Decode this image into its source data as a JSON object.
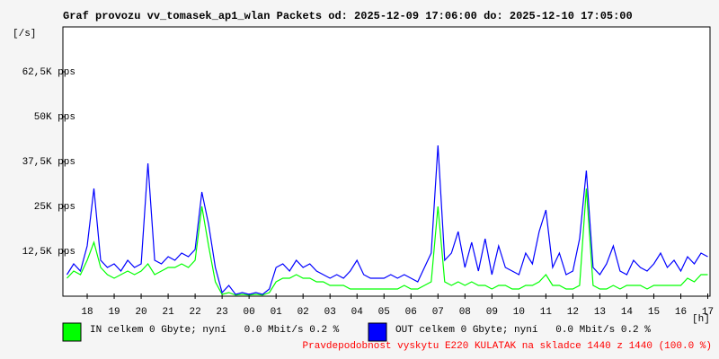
{
  "chart_data": {
    "type": "line",
    "title": "Graf provozu vv_tomasek_ap1_wlan Packets od: 2025-12-09 17:06:00 do: 2025-12-10 17:05:00",
    "y_label": "[/s]",
    "x_label": "[h]",
    "footer": "Pravdepodobnost vyskytu E220 KULATAK na skladce 1440 z 1440 (100.0 %)",
    "xlim": [
      17.1,
      41.083
    ],
    "xticks": [
      18,
      19,
      20,
      21,
      22,
      23,
      {
        "value": 24,
        "label": "00"
      },
      {
        "value": 25,
        "label": "01"
      },
      {
        "value": 26,
        "label": "02"
      },
      {
        "value": 27,
        "label": "03"
      },
      {
        "value": 28,
        "label": "04"
      },
      {
        "value": 29,
        "label": "05"
      },
      {
        "value": 30,
        "label": "06"
      },
      {
        "value": 31,
        "label": "07"
      },
      {
        "value": 32,
        "label": "08"
      },
      {
        "value": 33,
        "label": "09"
      },
      {
        "value": 34,
        "label": "10"
      },
      {
        "value": 35,
        "label": "11"
      },
      {
        "value": 36,
        "label": "12"
      },
      {
        "value": 37,
        "label": "13"
      },
      {
        "value": 38,
        "label": "14"
      },
      {
        "value": 39,
        "label": "15"
      },
      {
        "value": 40,
        "label": "16"
      },
      {
        "value": 41,
        "label": "17"
      }
    ],
    "ylim": [
      0,
      75000
    ],
    "yticks": [
      {
        "value": 12500,
        "label": "12,5K pps"
      },
      {
        "value": 25000,
        "label": "25K pps"
      },
      {
        "value": 37500,
        "label": "37,5K pps"
      },
      {
        "value": 50000,
        "label": "50K pps"
      },
      {
        "value": 62500,
        "label": "62,5K pps"
      }
    ],
    "grid": false,
    "x": [
      17.25,
      17.5,
      17.75,
      18,
      18.25,
      18.5,
      18.75,
      19,
      19.25,
      19.5,
      19.75,
      20,
      20.25,
      20.5,
      20.75,
      21,
      21.25,
      21.5,
      21.75,
      22,
      22.25,
      22.5,
      22.75,
      23,
      23.25,
      23.5,
      23.75,
      24,
      24.25,
      24.5,
      24.75,
      25,
      25.25,
      25.5,
      25.75,
      26,
      26.25,
      26.5,
      26.75,
      27,
      27.25,
      27.5,
      27.75,
      28,
      28.25,
      28.5,
      28.75,
      29,
      29.25,
      29.5,
      29.75,
      30,
      30.25,
      30.5,
      30.75,
      31,
      31.25,
      31.5,
      31.75,
      32,
      32.25,
      32.5,
      32.75,
      33,
      33.25,
      33.5,
      33.75,
      34,
      34.25,
      34.5,
      34.75,
      35,
      35.25,
      35.5,
      35.75,
      36,
      36.25,
      36.5,
      36.75,
      37,
      37.25,
      37.5,
      37.75,
      38,
      38.25,
      38.5,
      38.75,
      39,
      39.25,
      39.5,
      39.75,
      40,
      40.25,
      40.5,
      40.75,
      41
    ],
    "series": [
      {
        "name": "IN celkem 0 Gbyte; nyní   0.0 Mbit/s 0.2 %",
        "color": "#00ff00",
        "values": [
          5000,
          7000,
          6000,
          10000,
          15000,
          8000,
          6000,
          5000,
          6000,
          7000,
          6000,
          7000,
          9000,
          6000,
          7000,
          8000,
          8000,
          9000,
          8000,
          10000,
          25000,
          14000,
          4000,
          500,
          1000,
          300,
          500,
          300,
          500,
          300,
          1000,
          4000,
          5000,
          5000,
          6000,
          5000,
          5000,
          4000,
          4000,
          3000,
          3000,
          3000,
          2000,
          2000,
          2000,
          2000,
          2000,
          2000,
          2000,
          2000,
          3000,
          2000,
          2000,
          3000,
          4000,
          25000,
          4000,
          3000,
          4000,
          3000,
          4000,
          3000,
          3000,
          2000,
          3000,
          3000,
          2000,
          2000,
          3000,
          3000,
          4000,
          6000,
          3000,
          3000,
          2000,
          2000,
          3000,
          30000,
          3000,
          2000,
          2000,
          3000,
          2000,
          3000,
          3000,
          3000,
          2000,
          3000,
          3000,
          3000,
          3000,
          3000,
          5000,
          4000,
          6000,
          6000
        ]
      },
      {
        "name": "OUT celkem 0 Gbyte; nyní   0.0 Mbit/s 0.2 %",
        "color": "#0000ff",
        "values": [
          6000,
          9000,
          7000,
          14000,
          30000,
          10000,
          8000,
          9000,
          7000,
          10000,
          8000,
          9000,
          37000,
          10000,
          9000,
          11000,
          10000,
          12000,
          11000,
          13000,
          29000,
          20000,
          8000,
          1000,
          3000,
          500,
          1000,
          500,
          1000,
          500,
          2000,
          8000,
          9000,
          7000,
          10000,
          8000,
          9000,
          7000,
          6000,
          5000,
          6000,
          5000,
          7000,
          10000,
          6000,
          5000,
          5000,
          5000,
          6000,
          5000,
          6000,
          5000,
          4000,
          8000,
          12000,
          42000,
          10000,
          12000,
          18000,
          8000,
          15000,
          7000,
          16000,
          6000,
          14000,
          8000,
          7000,
          6000,
          12000,
          9000,
          18000,
          24000,
          8000,
          12000,
          6000,
          7000,
          16000,
          35000,
          8000,
          6000,
          9000,
          14000,
          7000,
          6000,
          10000,
          8000,
          7000,
          9000,
          12000,
          8000,
          10000,
          7000,
          11000,
          9000,
          12000,
          11000
        ]
      }
    ]
  }
}
